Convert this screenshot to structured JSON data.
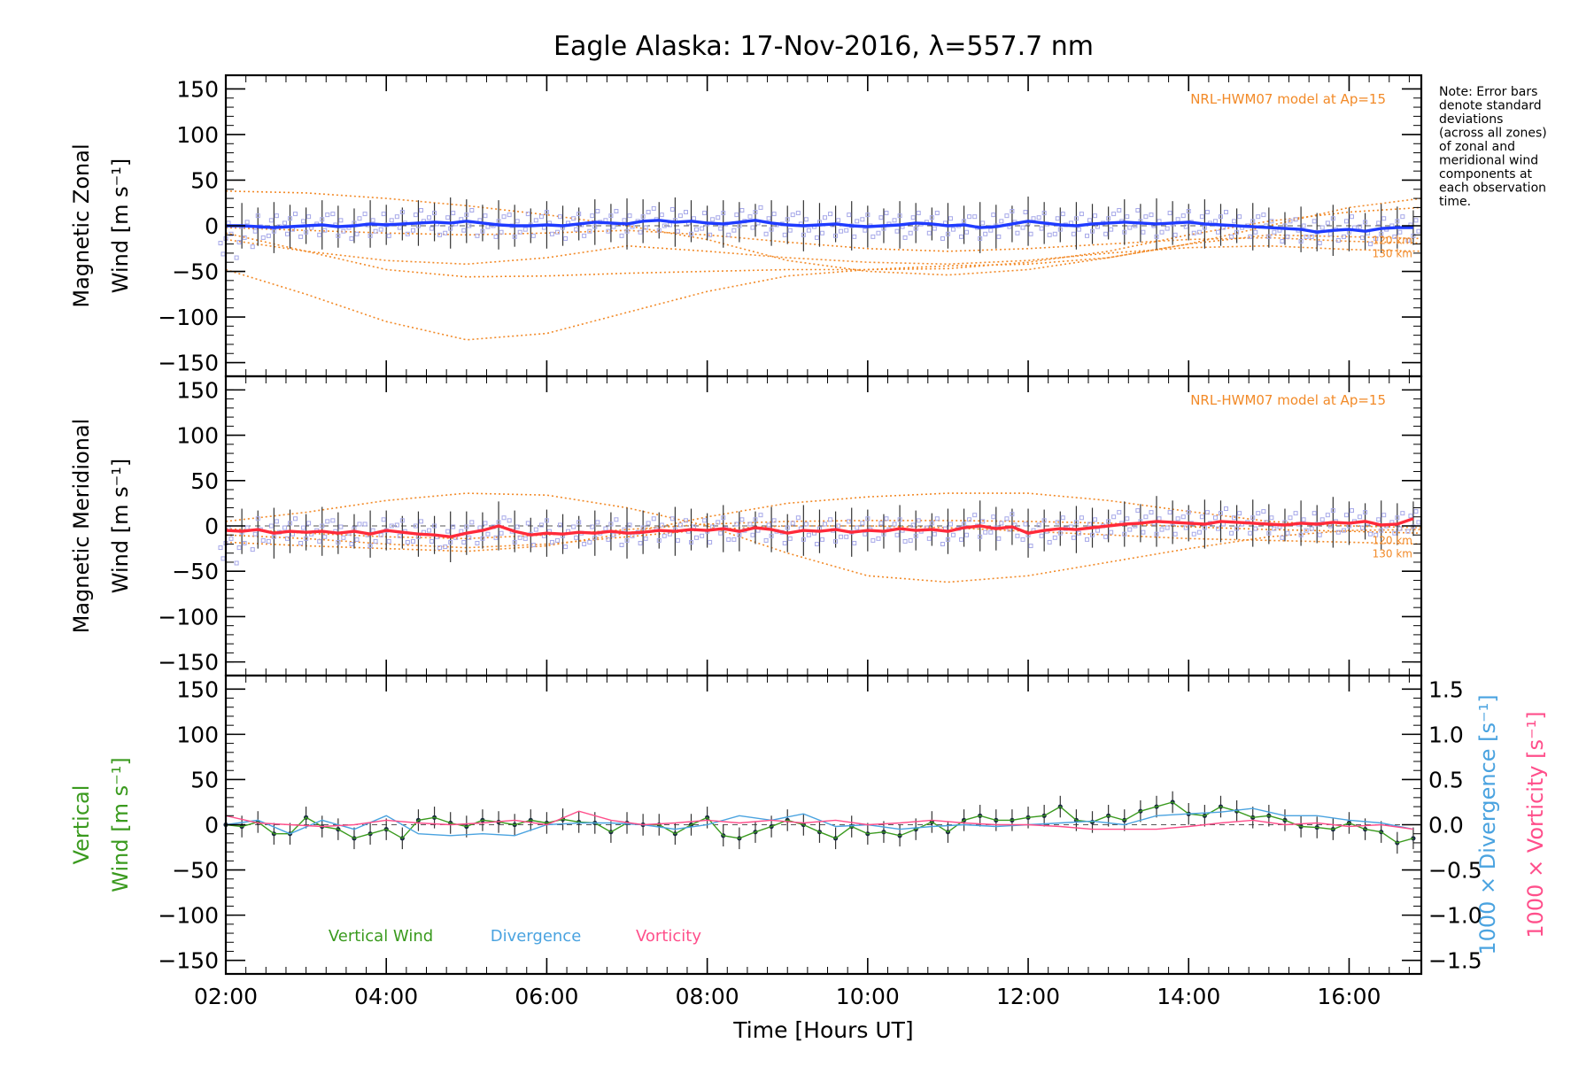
{
  "chart_data": [
    {
      "type": "line",
      "panel": "zonal",
      "title": "Eagle Alaska: 17-Nov-2016, λ=557.7 nm",
      "ylabel_lines": [
        "Magnetic Zonal",
        "Wind [m s⁻¹]"
      ],
      "ylim": [
        -165,
        165
      ],
      "yticks": [
        -150,
        -100,
        -50,
        0,
        50,
        100,
        150
      ],
      "xlim": [
        2.0,
        16.9
      ],
      "model_label": "NRL-HWM07 model at Ap=15",
      "model_altitude_labels": [
        "120 km",
        "130 km"
      ],
      "series": [
        {
          "color": "#1f3bff",
          "x": [
            2.0,
            2.2,
            2.4,
            2.6,
            2.8,
            3.0,
            3.2,
            3.4,
            3.6,
            3.8,
            4.0,
            4.2,
            4.4,
            4.6,
            4.8,
            5.0,
            5.2,
            5.4,
            5.6,
            5.8,
            6.0,
            6.2,
            6.4,
            6.6,
            6.8,
            7.0,
            7.2,
            7.4,
            7.6,
            7.8,
            8.0,
            8.2,
            8.4,
            8.6,
            8.8,
            9.0,
            9.2,
            9.4,
            9.6,
            9.8,
            10.0,
            10.2,
            10.4,
            10.6,
            10.8,
            11.0,
            11.2,
            11.4,
            11.6,
            11.8,
            12.0,
            12.2,
            12.4,
            12.6,
            12.8,
            13.0,
            13.2,
            13.4,
            13.6,
            13.8,
            14.0,
            14.2,
            14.4,
            14.6,
            14.8,
            15.0,
            15.2,
            15.4,
            15.6,
            15.8,
            16.0,
            16.2,
            16.4,
            16.6,
            16.8
          ],
          "y": [
            0,
            0,
            -1,
            -2,
            -1,
            0,
            1,
            -1,
            0,
            2,
            1,
            2,
            3,
            4,
            3,
            5,
            3,
            1,
            0,
            0,
            1,
            0,
            2,
            4,
            3,
            2,
            5,
            6,
            4,
            5,
            3,
            2,
            4,
            6,
            3,
            1,
            0,
            1,
            2,
            0,
            -1,
            0,
            1,
            3,
            2,
            0,
            1,
            -2,
            -1,
            2,
            5,
            3,
            1,
            0,
            2,
            3,
            4,
            3,
            2,
            3,
            4,
            2,
            1,
            0,
            -1,
            -2,
            -3,
            -4,
            -7,
            -5,
            -4,
            -6,
            -3,
            -2,
            -2
          ]
        }
      ],
      "model_curves": [
        {
          "label": "",
          "x": [
            2.0,
            3,
            4,
            5,
            6,
            7,
            8,
            9,
            10,
            11,
            12,
            13,
            14,
            15,
            16,
            16.9
          ],
          "y": [
            -48,
            -75,
            -105,
            -125,
            -118,
            -95,
            -72,
            -55,
            -48,
            -44,
            -42,
            -35,
            -20,
            0,
            20,
            30
          ]
        },
        {
          "label": "",
          "x": [
            2.0,
            3,
            4,
            5,
            6,
            7,
            8,
            9,
            10,
            11,
            12,
            13,
            14,
            15,
            16,
            16.9
          ],
          "y": [
            -8,
            -28,
            -48,
            -56,
            -55,
            -52,
            -50,
            -48,
            -48,
            -47,
            -40,
            -28,
            -10,
            5,
            15,
            20
          ]
        },
        {
          "label": "",
          "x": [
            2.0,
            3,
            4,
            5,
            6,
            7,
            8,
            9,
            10,
            11,
            12,
            13,
            14,
            15,
            16,
            16.9
          ],
          "y": [
            38,
            36,
            30,
            22,
            12,
            0,
            -15,
            -38,
            -50,
            -54,
            -48,
            -35,
            -20,
            -10,
            -12,
            -14
          ]
        },
        {
          "label": "120 km",
          "x": [
            2.0,
            3,
            4,
            5,
            6,
            7,
            8,
            9,
            10,
            11,
            12,
            13,
            14,
            15,
            16,
            16.9
          ],
          "y": [
            -2,
            -5,
            -8,
            -10,
            -8,
            -5,
            -10,
            -18,
            -25,
            -28,
            -25,
            -20,
            -15,
            -13,
            -17,
            -19
          ]
        },
        {
          "label": "130 km",
          "x": [
            2.0,
            3,
            4,
            5,
            6,
            7,
            8,
            9,
            10,
            11,
            12,
            13,
            14,
            15,
            16,
            16.9
          ],
          "y": [
            -15,
            -28,
            -38,
            -42,
            -35,
            -22,
            -28,
            -35,
            -40,
            -42,
            -38,
            -30,
            -24,
            -22,
            -26,
            -28
          ]
        }
      ]
    },
    {
      "type": "line",
      "panel": "meridional",
      "ylabel_lines": [
        "Magnetic Meridional",
        "Wind [m s⁻¹]"
      ],
      "ylim": [
        -165,
        165
      ],
      "yticks": [
        -150,
        -100,
        -50,
        0,
        50,
        100,
        150
      ],
      "xlim": [
        2.0,
        16.9
      ],
      "model_label": "NRL-HWM07 model at Ap=15",
      "model_altitude_labels": [
        "120 km",
        "130 km"
      ],
      "series": [
        {
          "color": "#ff2a3a",
          "x": [
            2.0,
            2.2,
            2.4,
            2.6,
            2.8,
            3.0,
            3.2,
            3.4,
            3.6,
            3.8,
            4.0,
            4.2,
            4.4,
            4.6,
            4.8,
            5.0,
            5.2,
            5.4,
            5.6,
            5.8,
            6.0,
            6.2,
            6.4,
            6.6,
            6.8,
            7.0,
            7.2,
            7.4,
            7.6,
            7.8,
            8.0,
            8.2,
            8.4,
            8.6,
            8.8,
            9.0,
            9.2,
            9.4,
            9.6,
            9.8,
            10.0,
            10.2,
            10.4,
            10.6,
            10.8,
            11.0,
            11.2,
            11.4,
            11.6,
            11.8,
            12.0,
            12.2,
            12.4,
            12.6,
            12.8,
            13.0,
            13.2,
            13.4,
            13.6,
            13.8,
            14.0,
            14.2,
            14.4,
            14.6,
            14.8,
            15.0,
            15.2,
            15.4,
            15.6,
            15.8,
            16.0,
            16.2,
            16.4,
            16.6,
            16.8
          ],
          "y": [
            -5,
            -6,
            -4,
            -8,
            -6,
            -7,
            -6,
            -8,
            -6,
            -9,
            -5,
            -7,
            -9,
            -10,
            -12,
            -8,
            -5,
            0,
            -6,
            -10,
            -8,
            -9,
            -7,
            -8,
            -6,
            -8,
            -7,
            -5,
            -6,
            -4,
            -5,
            -3,
            -6,
            -2,
            -4,
            -8,
            -5,
            -6,
            -4,
            -7,
            -5,
            -6,
            -3,
            -5,
            -4,
            -6,
            -2,
            0,
            -3,
            -1,
            -8,
            -5,
            -3,
            -4,
            -2,
            0,
            2,
            3,
            5,
            4,
            3,
            2,
            5,
            4,
            3,
            2,
            1,
            3,
            2,
            4,
            3,
            5,
            1,
            2,
            8
          ]
        }
      ],
      "model_curves": [
        {
          "label": "",
          "x": [
            2.0,
            3,
            4,
            5,
            6,
            7,
            8,
            9,
            10,
            11,
            12,
            13,
            14,
            15,
            16,
            16.9
          ],
          "y": [
            5,
            15,
            28,
            36,
            34,
            20,
            0,
            -30,
            -55,
            -62,
            -55,
            -40,
            -25,
            -12,
            -5,
            -4
          ]
        },
        {
          "label": "",
          "x": [
            2.0,
            3,
            4,
            5,
            6,
            7,
            8,
            9,
            10,
            11,
            12,
            13,
            14,
            15,
            16,
            16.9
          ],
          "y": [
            -18,
            -22,
            -25,
            -28,
            -22,
            -8,
            10,
            25,
            32,
            36,
            36,
            28,
            16,
            5,
            0,
            -2
          ]
        },
        {
          "label": "120 km",
          "x": [
            2.0,
            3,
            4,
            5,
            6,
            7,
            8,
            9,
            10,
            11,
            12,
            13,
            14,
            15,
            16,
            16.9
          ],
          "y": [
            -3,
            -8,
            -12,
            -14,
            -10,
            -4,
            2,
            5,
            6,
            6,
            5,
            3,
            -1,
            -4,
            -6,
            -8
          ]
        },
        {
          "label": "130 km",
          "x": [
            2.0,
            3,
            4,
            5,
            6,
            7,
            8,
            9,
            10,
            11,
            12,
            13,
            14,
            15,
            16,
            16.9
          ],
          "y": [
            -10,
            -14,
            -20,
            -24,
            -20,
            -12,
            -4,
            0,
            0,
            -2,
            -6,
            -10,
            -14,
            -16,
            -18,
            -20
          ]
        }
      ]
    },
    {
      "type": "line",
      "panel": "vertical",
      "ylabel_lines": [
        "Vertical",
        "Wind [m s⁻¹]"
      ],
      "ylim": [
        -165,
        165
      ],
      "yticks": [
        -150,
        -100,
        -50,
        0,
        50,
        100,
        150
      ],
      "y2label_lines": [
        "1000 × Divergence [s⁻¹]",
        "1000 × Vorticity [s⁻¹]"
      ],
      "y2ticks": [
        -1.5,
        -1.0,
        -0.5,
        0.0,
        0.5,
        1.0,
        1.5
      ],
      "y2lim": [
        -1.65,
        1.65
      ],
      "xlim": [
        2.0,
        16.9
      ],
      "xticks": [
        "02:00",
        "04:00",
        "06:00",
        "08:00",
        "10:00",
        "12:00",
        "14:00",
        "16:00"
      ],
      "xlabel": "Time [Hours UT]",
      "legend": [
        "Vertical Wind",
        "Divergence",
        "Vorticity"
      ],
      "series": [
        {
          "name": "Vertical Wind",
          "color": "#3a9a1e",
          "x": [
            2.0,
            2.2,
            2.4,
            2.6,
            2.8,
            3.0,
            3.2,
            3.4,
            3.6,
            3.8,
            4.0,
            4.2,
            4.4,
            4.6,
            4.8,
            5.0,
            5.2,
            5.4,
            5.6,
            5.8,
            6.0,
            6.2,
            6.4,
            6.6,
            6.8,
            7.0,
            7.2,
            7.4,
            7.6,
            7.8,
            8.0,
            8.2,
            8.4,
            8.6,
            8.8,
            9.0,
            9.2,
            9.4,
            9.6,
            9.8,
            10.0,
            10.2,
            10.4,
            10.6,
            10.8,
            11.0,
            11.2,
            11.4,
            11.6,
            11.8,
            12.0,
            12.2,
            12.4,
            12.6,
            12.8,
            13.0,
            13.2,
            13.4,
            13.6,
            13.8,
            14.0,
            14.2,
            14.4,
            14.6,
            14.8,
            15.0,
            15.2,
            15.4,
            15.6,
            15.8,
            16.0,
            16.2,
            16.4,
            16.6,
            16.8
          ],
          "y": [
            0,
            -2,
            3,
            -10,
            -10,
            8,
            -2,
            -5,
            -15,
            -10,
            -5,
            -15,
            5,
            8,
            2,
            -2,
            5,
            3,
            0,
            5,
            2,
            6,
            3,
            2,
            -8,
            2,
            0,
            0,
            -10,
            0,
            8,
            -12,
            -15,
            -8,
            -2,
            5,
            0,
            -8,
            -15,
            -2,
            -10,
            -8,
            -12,
            -5,
            3,
            -8,
            5,
            10,
            5,
            5,
            8,
            10,
            20,
            5,
            3,
            10,
            5,
            15,
            20,
            25,
            12,
            10,
            20,
            15,
            8,
            10,
            5,
            -2,
            -3,
            -5,
            2,
            -5,
            -8,
            -20,
            -15
          ]
        },
        {
          "name": "Divergence",
          "color": "#4aa3e0",
          "x": [
            2.0,
            2.4,
            2.8,
            3.2,
            3.6,
            4.0,
            4.4,
            4.8,
            5.2,
            5.6,
            6.0,
            6.4,
            6.8,
            7.2,
            7.6,
            8.0,
            8.4,
            8.8,
            9.2,
            9.6,
            10.0,
            10.4,
            10.8,
            11.2,
            11.6,
            12.0,
            12.4,
            12.8,
            13.2,
            13.6,
            14.0,
            14.4,
            14.8,
            15.2,
            15.6,
            16.0,
            16.4,
            16.8
          ],
          "y": [
            0.0,
            0.05,
            -0.1,
            0.05,
            -0.05,
            0.1,
            -0.1,
            -0.12,
            -0.1,
            -0.12,
            0.0,
            0.02,
            0.02,
            0.0,
            -0.05,
            0.0,
            0.1,
            0.05,
            0.12,
            -0.02,
            0.0,
            -0.05,
            -0.02,
            0.0,
            -0.02,
            0.0,
            0.02,
            0.04,
            0.0,
            0.1,
            0.12,
            0.14,
            0.18,
            0.1,
            0.1,
            0.05,
            0.02,
            -0.05
          ]
        },
        {
          "name": "Vorticity",
          "color": "#ff4f8b",
          "x": [
            2.0,
            2.4,
            2.8,
            3.2,
            3.6,
            4.0,
            4.4,
            4.8,
            5.2,
            5.6,
            6.0,
            6.4,
            6.8,
            7.2,
            7.6,
            8.0,
            8.4,
            8.8,
            9.2,
            9.6,
            10.0,
            10.4,
            10.8,
            11.2,
            11.6,
            12.0,
            12.4,
            12.8,
            13.2,
            13.6,
            14.0,
            14.4,
            14.8,
            15.2,
            15.6,
            16.0,
            16.4,
            16.8
          ],
          "y": [
            0.1,
            0.02,
            0.0,
            -0.02,
            0.0,
            0.05,
            0.02,
            0.0,
            0.02,
            0.05,
            0.0,
            0.15,
            0.05,
            0.0,
            0.02,
            0.05,
            0.02,
            0.05,
            0.02,
            0.05,
            0.0,
            0.02,
            0.05,
            0.02,
            0.0,
            0.0,
            -0.02,
            -0.05,
            -0.05,
            -0.05,
            -0.02,
            0.02,
            0.05,
            0.0,
            0.02,
            -0.02,
            0.0,
            -0.05
          ]
        }
      ]
    }
  ],
  "note_lines": [
    "Note: Error bars",
    "denote standard",
    "deviations",
    "(across all zones)",
    "of zonal and",
    "meridional wind",
    "components at",
    "each observation",
    "time."
  ],
  "colors": {
    "model": "#f28a28",
    "zonal": "#1f3bff",
    "meridional": "#ff2a3a",
    "vertical": "#3a9a1e",
    "divergence": "#4aa3e0",
    "vorticity": "#ff4f8b",
    "scatter": "#a5a7e8"
  }
}
